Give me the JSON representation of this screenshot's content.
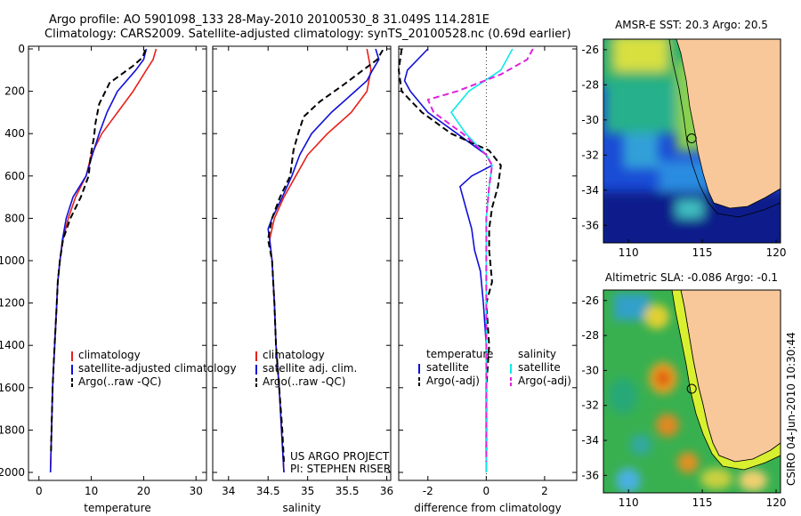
{
  "header": {
    "line1": "Argo profile: AO 5901098_133 28-May-2010 20100530_8 31.049S 114.281E",
    "line2": "Climatology: CARS2009. Satellite-adjusted climatology: synTS_20100528.nc (0.69d earlier)"
  },
  "side_stamp": "CSIRO 04-Jun-2010 10:30:44",
  "colors": {
    "red": "#e8201a",
    "blue": "#1010d8",
    "black": "#000000",
    "cyan": "#10e8e8",
    "magenta": "#e020e0",
    "land": "#f8c89a"
  },
  "chart_data": [
    {
      "type": "line",
      "id": "temperature",
      "xlabel": "temperature",
      "ylabel": "",
      "xlim": [
        -2,
        32
      ],
      "ylim": [
        2050,
        0
      ],
      "y_reversed": true,
      "xticks": [
        0,
        10,
        20,
        30
      ],
      "yticks": [
        0,
        200,
        400,
        600,
        800,
        1000,
        1200,
        1400,
        1600,
        1800,
        2000
      ],
      "legend": {
        "placement": "lower-left",
        "entries": [
          "climatology",
          "satellite-adjusted climatology",
          "Argo(..raw -QC)"
        ]
      },
      "series": [
        {
          "name": "climatology",
          "color": "red",
          "dash": false,
          "points": [
            [
              22.4,
              0
            ],
            [
              21.8,
              50
            ],
            [
              20.5,
              100
            ],
            [
              18,
              200
            ],
            [
              15,
              300
            ],
            [
              12,
              400
            ],
            [
              10,
              500
            ],
            [
              9,
              600
            ],
            [
              7,
              700
            ],
            [
              5.6,
              800
            ],
            [
              4.6,
              900
            ],
            [
              4,
              1000
            ],
            [
              3.6,
              1100
            ],
            [
              3.4,
              1200
            ],
            [
              3.2,
              1300
            ],
            [
              3.0,
              1400
            ],
            [
              2.8,
              1500
            ],
            [
              2.6,
              1600
            ],
            [
              2.5,
              1700
            ],
            [
              2.4,
              1800
            ],
            [
              2.3,
              1900
            ],
            [
              2.2,
              2000
            ]
          ]
        },
        {
          "name": "satellite-adjusted climatology",
          "color": "blue",
          "dash": false,
          "points": [
            [
              20.5,
              0
            ],
            [
              20,
              50
            ],
            [
              18.5,
              100
            ],
            [
              15,
              200
            ],
            [
              13,
              300
            ],
            [
              11.5,
              400
            ],
            [
              10.2,
              500
            ],
            [
              9,
              600
            ],
            [
              6.5,
              700
            ],
            [
              5.2,
              800
            ],
            [
              4.5,
              900
            ],
            [
              4,
              1000
            ],
            [
              3.6,
              1100
            ],
            [
              3.4,
              1200
            ],
            [
              3.2,
              1300
            ],
            [
              3.0,
              1400
            ],
            [
              2.8,
              1500
            ],
            [
              2.6,
              1600
            ],
            [
              2.5,
              1700
            ],
            [
              2.4,
              1800
            ],
            [
              2.3,
              1900
            ],
            [
              2.2,
              2000
            ]
          ]
        },
        {
          "name": "Argo(..raw -QC)",
          "color": "black",
          "dash": true,
          "points": [
            [
              20.3,
              5
            ],
            [
              19.8,
              40
            ],
            [
              18,
              80
            ],
            [
              13.5,
              160
            ],
            [
              11.5,
              260
            ],
            [
              10.8,
              350
            ],
            [
              10.5,
              420
            ],
            [
              9.9,
              500
            ],
            [
              9.5,
              600
            ],
            [
              8,
              700
            ],
            [
              6,
              800
            ],
            [
              4.6,
              900
            ],
            [
              4,
              1000
            ],
            [
              3.6,
              1100
            ],
            [
              3.4,
              1200
            ],
            [
              3.2,
              1300
            ],
            [
              3.0,
              1400
            ],
            [
              2.8,
              1500
            ],
            [
              2.6,
              1600
            ],
            [
              2.5,
              1700
            ],
            [
              2.4,
              1800
            ],
            [
              2.3,
              1900
            ]
          ]
        }
      ]
    },
    {
      "type": "line",
      "id": "salinity",
      "xlabel": "salinity",
      "ylabel": "",
      "xlim": [
        33.8,
        36.05
      ],
      "ylim": [
        2050,
        0
      ],
      "y_reversed": true,
      "xticks": [
        34,
        34.5,
        35,
        35.5,
        36
      ],
      "legend": {
        "placement": "lower-left",
        "entries": [
          "climatology",
          "satellite adj. clim.",
          "Argo(..raw -QC)"
        ]
      },
      "annotations": [
        "US ARGO PROJECT",
        "PI: STEPHEN RISER"
      ],
      "series": [
        {
          "name": "climatology",
          "color": "red",
          "dash": false,
          "points": [
            [
              35.75,
              0
            ],
            [
              35.8,
              100
            ],
            [
              35.75,
              200
            ],
            [
              35.55,
              300
            ],
            [
              35.25,
              400
            ],
            [
              35.0,
              500
            ],
            [
              34.85,
              600
            ],
            [
              34.7,
              700
            ],
            [
              34.58,
              800
            ],
            [
              34.52,
              900
            ],
            [
              34.55,
              1000
            ],
            [
              34.58,
              1200
            ],
            [
              34.6,
              1400
            ],
            [
              34.64,
              1600
            ],
            [
              34.67,
              1800
            ],
            [
              34.7,
              2000
            ]
          ]
        },
        {
          "name": "satellite adj. clim.",
          "color": "blue",
          "dash": false,
          "points": [
            [
              35.86,
              0
            ],
            [
              35.9,
              50
            ],
            [
              35.82,
              100
            ],
            [
              35.75,
              150
            ],
            [
              35.6,
              200
            ],
            [
              35.3,
              300
            ],
            [
              35.05,
              400
            ],
            [
              34.9,
              500
            ],
            [
              34.8,
              600
            ],
            [
              34.68,
              700
            ],
            [
              34.55,
              800
            ],
            [
              34.5,
              850
            ],
            [
              34.52,
              900
            ],
            [
              34.55,
              1000
            ],
            [
              34.58,
              1200
            ],
            [
              34.6,
              1400
            ],
            [
              34.64,
              1600
            ],
            [
              34.67,
              1800
            ],
            [
              34.7,
              2000
            ]
          ]
        },
        {
          "name": "Argo(..raw -QC)",
          "color": "black",
          "dash": true,
          "points": [
            [
              35.95,
              5
            ],
            [
              35.88,
              50
            ],
            [
              35.7,
              100
            ],
            [
              35.45,
              170
            ],
            [
              35.15,
              250
            ],
            [
              34.95,
              320
            ],
            [
              34.88,
              400
            ],
            [
              34.82,
              480
            ],
            [
              34.78,
              600
            ],
            [
              34.65,
              700
            ],
            [
              34.55,
              800
            ],
            [
              34.5,
              900
            ],
            [
              34.55,
              1000
            ],
            [
              34.58,
              1200
            ],
            [
              34.6,
              1400
            ],
            [
              34.64,
              1600
            ],
            [
              34.68,
              1800
            ],
            [
              34.7,
              1950
            ]
          ]
        }
      ]
    },
    {
      "type": "line",
      "id": "difference",
      "xlabel": "difference from climatology",
      "ylabel": "",
      "xlim": [
        -3,
        3.1
      ],
      "ylim": [
        2050,
        0
      ],
      "y_reversed": true,
      "xticks": [
        -2,
        0,
        2
      ],
      "zero_line": "dotted",
      "legend": {
        "placement": "lower-left",
        "left_title": "temperature",
        "right_title": "salinity",
        "left_entries": [
          "satellite",
          "Argo(-adj)"
        ],
        "right_entries": [
          "satellite",
          "Argo(-adj)"
        ]
      },
      "series": [
        {
          "name": "temperature satellite",
          "color": "blue",
          "dash": false,
          "points": [
            [
              -2.0,
              0
            ],
            [
              -2.7,
              100
            ],
            [
              -2.8,
              150
            ],
            [
              -2.6,
              200
            ],
            [
              -2.0,
              300
            ],
            [
              -1.0,
              400
            ],
            [
              0.0,
              500
            ],
            [
              0.2,
              550
            ],
            [
              -0.5,
              600
            ],
            [
              -0.9,
              650
            ],
            [
              -0.7,
              750
            ],
            [
              -0.5,
              850
            ],
            [
              -0.4,
              950
            ],
            [
              -0.2,
              1050
            ],
            [
              -0.1,
              1200
            ],
            [
              0,
              1400
            ],
            [
              0,
              1600
            ],
            [
              0,
              1800
            ],
            [
              0,
              2000
            ]
          ]
        },
        {
          "name": "temperature Argo(-adj)",
          "color": "black",
          "dash": true,
          "points": [
            [
              -2.9,
              0
            ],
            [
              -3.0,
              100
            ],
            [
              -2.9,
              200
            ],
            [
              -2.2,
              300
            ],
            [
              -1.2,
              400
            ],
            [
              0.1,
              480
            ],
            [
              0.5,
              550
            ],
            [
              0.4,
              650
            ],
            [
              0.2,
              750
            ],
            [
              0.1,
              850
            ],
            [
              0.1,
              950
            ],
            [
              0.2,
              1100
            ],
            [
              0,
              1200
            ],
            [
              0.1,
              1400
            ],
            [
              0,
              1600
            ],
            [
              0,
              1800
            ],
            [
              0,
              1900
            ]
          ]
        },
        {
          "name": "salinity satellite",
          "color": "cyan",
          "dash": false,
          "points": [
            [
              0.9,
              0
            ],
            [
              0.5,
              100
            ],
            [
              -0.6,
              200
            ],
            [
              -1.2,
              300
            ],
            [
              -0.7,
              400
            ],
            [
              0.0,
              500
            ],
            [
              0.2,
              550
            ],
            [
              0.1,
              650
            ],
            [
              0.0,
              800
            ],
            [
              0,
              1000
            ],
            [
              0,
              1200
            ],
            [
              0,
              1500
            ],
            [
              0,
              1800
            ],
            [
              0,
              2000
            ]
          ]
        },
        {
          "name": "salinity Argo(-adj)",
          "color": "magenta",
          "dash": true,
          "points": [
            [
              1.6,
              0
            ],
            [
              1.4,
              50
            ],
            [
              0.5,
              120
            ],
            [
              -1.0,
              200
            ],
            [
              -2.0,
              240
            ],
            [
              -1.8,
              300
            ],
            [
              -0.8,
              400
            ],
            [
              0,
              500
            ],
            [
              0.2,
              550
            ],
            [
              0.1,
              650
            ],
            [
              0,
              800
            ],
            [
              0,
              1000
            ],
            [
              0,
              1200
            ],
            [
              0,
              1500
            ],
            [
              0,
              1800
            ],
            [
              0,
              1950
            ]
          ]
        }
      ]
    },
    {
      "type": "heatmap",
      "id": "sst_map",
      "title": "AMSR-E SST: 20.3 Argo: 20.5",
      "xlim": [
        108.3,
        120.3
      ],
      "ylim": [
        -37,
        -25.4
      ],
      "xticks": [
        110,
        115,
        120
      ],
      "yticks": [
        -26,
        -28,
        -30,
        -32,
        -34,
        -36
      ],
      "marker": {
        "lon": 114.281,
        "lat": -31.049
      }
    },
    {
      "type": "heatmap",
      "id": "sla_map",
      "title": "Altimetric SLA: -0.086 Argo: -0.1",
      "xlim": [
        108.3,
        120.3
      ],
      "ylim": [
        -37,
        -25.4
      ],
      "xticks": [
        110,
        115,
        120
      ],
      "yticks": [
        -26,
        -28,
        -30,
        -32,
        -34,
        -36
      ],
      "marker": {
        "lon": 114.281,
        "lat": -31.049
      }
    }
  ]
}
